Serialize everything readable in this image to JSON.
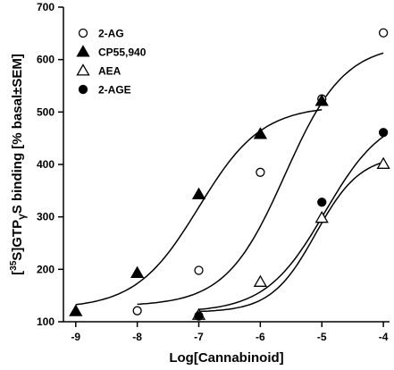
{
  "chart_data": {
    "type": "scatter",
    "xlabel": "Log[Cannabinoid]",
    "ylabel_parts": {
      "open": "[",
      "sup": "35",
      "mid": "S]GTP",
      "gamma": "γ",
      "tail": "S binding [% basal±SEM]"
    },
    "xlim": [
      -9.2,
      -3.9
    ],
    "ylim": [
      100,
      700
    ],
    "xticks": [
      -9,
      -8,
      -7,
      -6,
      -5,
      -4
    ],
    "yticks": [
      100,
      200,
      300,
      400,
      500,
      600,
      700
    ],
    "xtick_labels": [
      "-9",
      "-8",
      "-7",
      "-6",
      "-5",
      "-4"
    ],
    "ytick_labels": [
      "100",
      "200",
      "300",
      "400",
      "500",
      "600",
      "700"
    ],
    "legend_position": "top-left",
    "series": [
      {
        "name": "2-AG",
        "marker": "open-circle",
        "points": [
          [
            -8,
            121
          ],
          [
            -7,
            198
          ],
          [
            -6,
            385
          ],
          [
            -5,
            525
          ],
          [
            -4,
            651
          ]
        ],
        "fit": {
          "bottom": 130,
          "top": 630,
          "logEC50": -5.6,
          "hill": 0.9,
          "x_from": -8,
          "x_to": -4
        }
      },
      {
        "name": "CP55,940",
        "marker": "filled-triangle",
        "points": [
          [
            -9,
            120
          ],
          [
            -8,
            193
          ],
          [
            -7,
            343
          ],
          [
            -6,
            458
          ],
          [
            -5,
            521
          ]
        ],
        "fit": {
          "bottom": 125,
          "top": 512,
          "logEC50": -7.0,
          "hill": 0.85,
          "x_from": -9,
          "x_to": -5
        }
      },
      {
        "name": "AEA",
        "marker": "open-triangle",
        "points": [
          [
            -7,
            113
          ],
          [
            -6,
            176
          ],
          [
            -5,
            298
          ],
          [
            -4,
            401
          ]
        ],
        "fit": {
          "bottom": 118,
          "top": 418,
          "logEC50": -5.1,
          "hill": 1.2,
          "x_from": -7,
          "x_to": -4
        }
      },
      {
        "name": "2-AGE",
        "marker": "filled-circle",
        "points": [
          [
            -7,
            111
          ],
          [
            -5,
            328
          ],
          [
            -4,
            461
          ]
        ],
        "fit": {
          "bottom": 118,
          "top": 500,
          "logEC50": -4.95,
          "hill": 0.9,
          "x_from": -7,
          "x_to": -4
        }
      }
    ]
  }
}
